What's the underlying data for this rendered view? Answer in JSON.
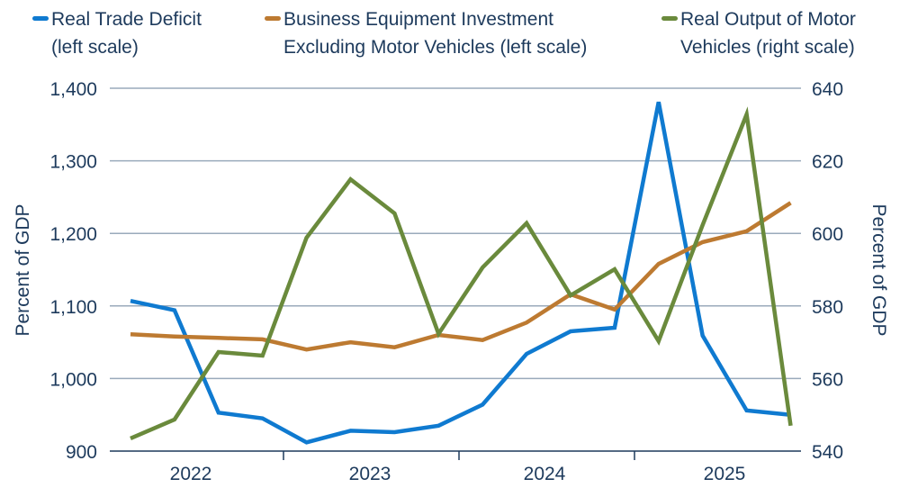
{
  "chart_data": {
    "type": "line",
    "title": "",
    "ylabel_left": "Percent of GDP",
    "ylabel_right": "Percent of GDP",
    "x": [
      "2022-Q1",
      "2022-Q2",
      "2022-Q3",
      "2022-Q4",
      "2023-Q1",
      "2023-Q2",
      "2023-Q3",
      "2023-Q4",
      "2024-Q1",
      "2024-Q2",
      "2024-Q3",
      "2024-Q4",
      "2025-Q1",
      "2025-Q2",
      "2025-Q3",
      "2025-Q4"
    ],
    "x_tick_labels": [
      "2022",
      "2023",
      "2024",
      "2025"
    ],
    "ylim_left": [
      900,
      1400
    ],
    "yticks_left": [
      "900",
      "1,000",
      "1,100",
      "1,200",
      "1,300",
      "1,400"
    ],
    "ylim_right": [
      540,
      640
    ],
    "yticks_right": [
      "540",
      "560",
      "580",
      "600",
      "620",
      "640"
    ],
    "grid": "horizontal",
    "legend_placement": "top",
    "series": [
      {
        "name": "Real Trade Deficit (left scale)",
        "axis": "left",
        "color": "#0f7ad0",
        "values": [
          1107,
          1094,
          953,
          945,
          912,
          928,
          926,
          935,
          964,
          1034,
          1065,
          1070,
          1381,
          1059,
          956,
          950
        ]
      },
      {
        "name": "Business Equipment Investment Excluding Motor Vehicles (left scale)",
        "axis": "left",
        "color": "#bd7a31",
        "values": [
          1061,
          1058,
          1056,
          1054,
          1040,
          1050,
          1043,
          1060,
          1053,
          1077,
          1116,
          1095,
          1158,
          1188,
          1203,
          1242
        ]
      },
      {
        "name": "Real Output of Motor Vehicles (right scale)",
        "axis": "right",
        "color": "#6a8a3c",
        "values": [
          543.5,
          548.7,
          567.3,
          566.3,
          598.8,
          614.9,
          605.5,
          572.3,
          590.6,
          602.8,
          582.9,
          590.1,
          570.3,
          602.3,
          632.8,
          547
        ]
      }
    ]
  },
  "legend": [
    {
      "line1": "Real Trade Deficit",
      "line2": "(left scale)"
    },
    {
      "line1": "Business Equipment Investment",
      "line2": "Excluding Motor Vehicles (left scale)"
    },
    {
      "line1": "Real Output of Motor",
      "line2": "Vehicles (right scale)"
    }
  ]
}
